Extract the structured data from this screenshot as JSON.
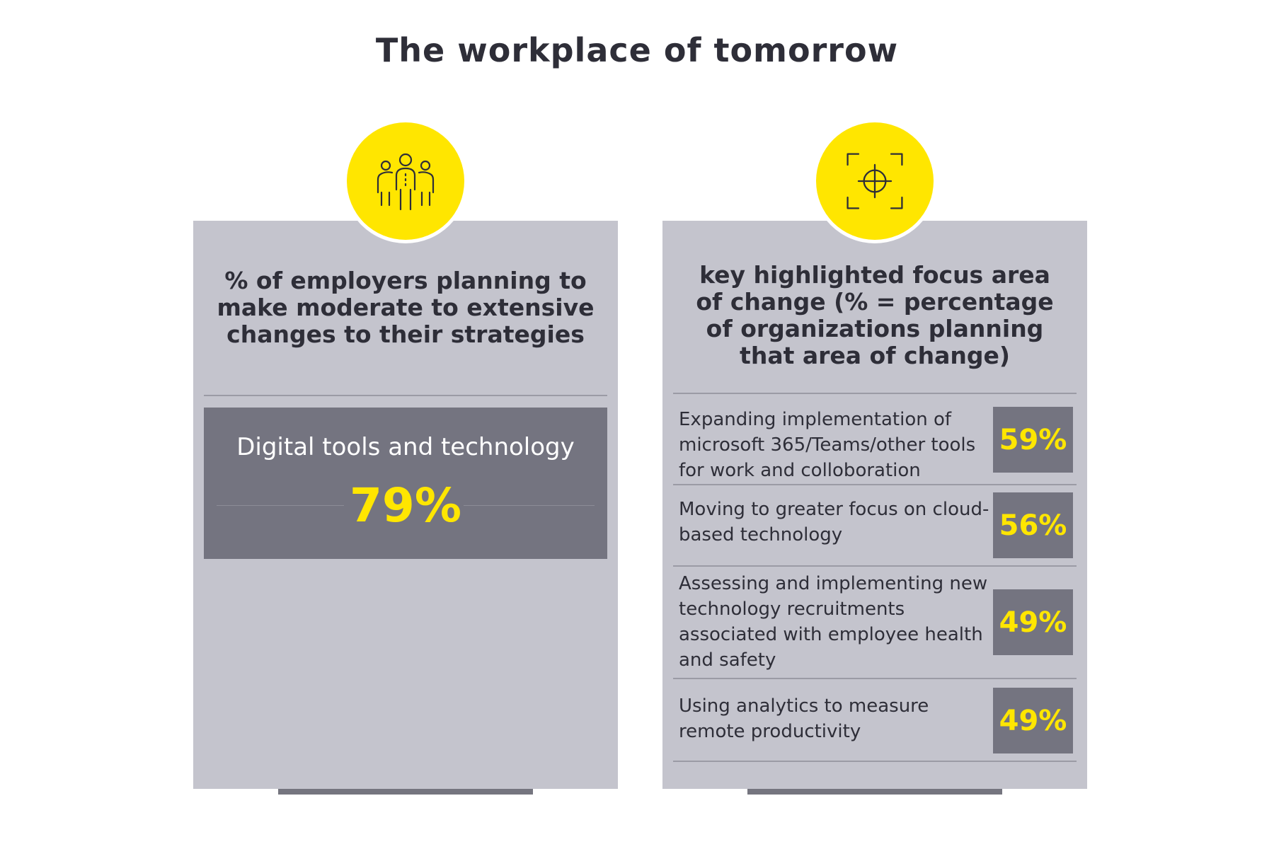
{
  "title": "The workplace of tomorrow",
  "colors": {
    "accent": "#ffe600",
    "card": "#c4c4cd",
    "dark": "#747480",
    "text": "#2e2e38"
  },
  "left_card": {
    "icon": "people-group-icon",
    "heading": "% of employers planning to make moderate to extensive changes to their strategies",
    "highlight": {
      "label": "Digital tools and technology",
      "value": "79%"
    }
  },
  "right_card": {
    "icon": "target-crosshair-icon",
    "heading": "key highlighted focus area of change (% = percentage of organizations planning that area of change)",
    "items": [
      {
        "label": "Expanding implementation of microsoft 365/Teams/other tools for work and colloboration",
        "value": "59%"
      },
      {
        "label": "Moving to greater focus on cloud-based technology",
        "value": "56%"
      },
      {
        "label": "Assessing and implementing new technology recruitments associated with employee health and safety",
        "value": "49%"
      },
      {
        "label": "Using analytics to measure remote productivity",
        "value": "49%"
      }
    ]
  }
}
